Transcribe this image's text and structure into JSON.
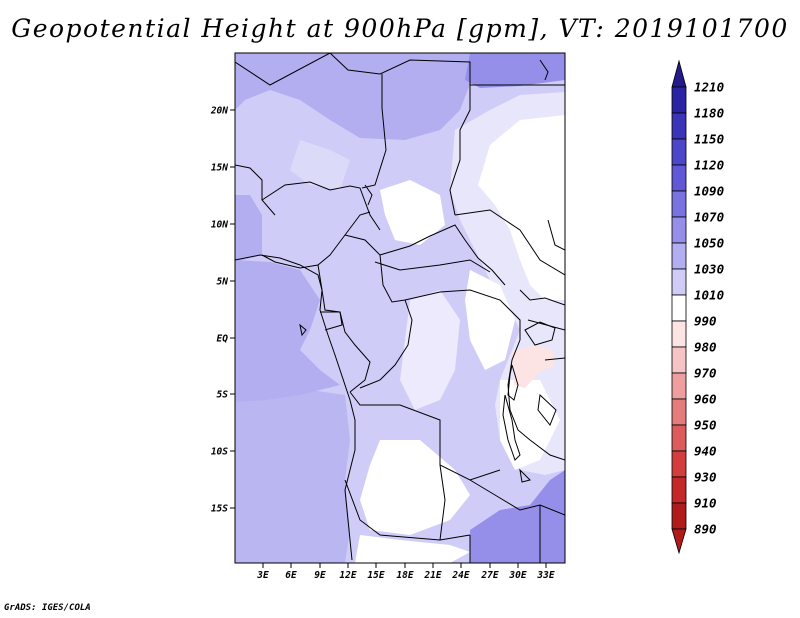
{
  "title": "Geopotential Height at 900hPa [gpm], VT: 2019101700",
  "credit": "GrADS: IGES/COLA",
  "map": {
    "lat_labels": [
      "20N",
      "15N",
      "10N",
      "5N",
      "EQ",
      "5S",
      "10S",
      "15S"
    ],
    "lon_labels": [
      "3E",
      "6E",
      "9E",
      "12E",
      "15E",
      "18E",
      "21E",
      "24E",
      "27E",
      "30E",
      "33E"
    ]
  },
  "colorbar": {
    "levels": [
      {
        "label": "1210",
        "color": "#241a8c"
      },
      {
        "label": "1180",
        "color": "#2a24a4"
      },
      {
        "label": "1150",
        "color": "#3a34b8"
      },
      {
        "label": "1120",
        "color": "#4c46c8"
      },
      {
        "label": "1090",
        "color": "#6058d6"
      },
      {
        "label": "1070",
        "color": "#7a72e0"
      },
      {
        "label": "1050",
        "color": "#958fea"
      },
      {
        "label": "1030",
        "color": "#b2aef0"
      },
      {
        "label": "1010",
        "color": "#cfcdf7"
      },
      {
        "label": "990",
        "color": "#ffffff"
      },
      {
        "label": "980",
        "color": "#fce4e4"
      },
      {
        "label": "970",
        "color": "#f6c4c4"
      },
      {
        "label": "960",
        "color": "#ee9e9e"
      },
      {
        "label": "950",
        "color": "#e47c7c"
      },
      {
        "label": "940",
        "color": "#dc5c5c"
      },
      {
        "label": "930",
        "color": "#d23e3e"
      },
      {
        "label": "910",
        "color": "#c42828"
      },
      {
        "label": "890",
        "color": "#b01a1a"
      }
    ]
  }
}
